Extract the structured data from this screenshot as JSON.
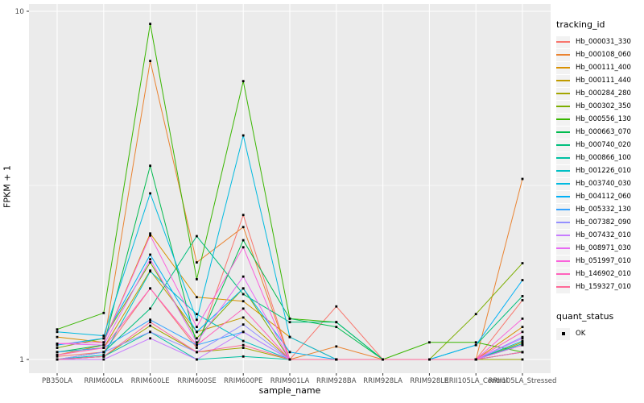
{
  "chart_data": {
    "type": "line",
    "title": "",
    "xlabel": "sample_name",
    "ylabel": "FPKM + 1",
    "y_scale": "log10",
    "ylim": [
      1,
      10
    ],
    "y_ticks": [
      10,
      1
    ],
    "y_minor_ticks": [
      3.162
    ],
    "grid": true,
    "legend_position": "right",
    "panel_bg": "#EBEBEB",
    "grid_color": "#FFFFFF",
    "axis_text_color": "#4D4D4D",
    "tick_color": "#333333",
    "point_shape": "square",
    "point_color": "#000000",
    "categories": [
      "PB350LA",
      "RRIM600LA",
      "RRIM600LE",
      "RRIM600SE",
      "RRIM600PE",
      "RRIM901LA",
      "RRIM928BA",
      "RRIM928LA",
      "RRIM928LE",
      "RRII105LA_Control",
      "RRII105LA_Stressed"
    ],
    "series": [
      {
        "name": "Hb_000031_330",
        "color": "#F8766D",
        "values": [
          1.02,
          1.05,
          1.6,
          1.08,
          2.6,
          1.0,
          1.42,
          1.0,
          1.0,
          1.0,
          1.48
        ]
      },
      {
        "name": "Hb_000108_060",
        "color": "#EA8331",
        "values": [
          1.03,
          1.1,
          7.2,
          1.9,
          2.4,
          1.0,
          1.09,
          1.0,
          1.0,
          1.0,
          3.3
        ]
      },
      {
        "name": "Hb_000111_400",
        "color": "#D89000",
        "values": [
          1.16,
          1.12,
          2.3,
          1.51,
          1.47,
          1.16,
          1.0,
          1.0,
          1.0,
          1.0,
          1.24
        ]
      },
      {
        "name": "Hb_000111_440",
        "color": "#C09B00",
        "values": [
          1.05,
          1.08,
          1.8,
          1.2,
          1.32,
          1.0,
          1.0,
          1.0,
          1.0,
          1.0,
          1.12
        ]
      },
      {
        "name": "Hb_000284_280",
        "color": "#A3A500",
        "values": [
          1.0,
          1.02,
          1.25,
          1.05,
          1.08,
          1.0,
          1.0,
          1.0,
          1.0,
          1.0,
          1.0
        ]
      },
      {
        "name": "Hb_000302_350",
        "color": "#7CAE00",
        "values": [
          1.08,
          1.15,
          1.9,
          1.15,
          1.6,
          1.0,
          1.0,
          1.0,
          1.0,
          1.35,
          1.89
        ]
      },
      {
        "name": "Hb_000556_130",
        "color": "#39B600",
        "values": [
          1.22,
          1.36,
          9.2,
          1.7,
          6.3,
          1.31,
          1.28,
          1.0,
          1.12,
          1.12,
          1.05
        ]
      },
      {
        "name": "Hb_000663_070",
        "color": "#00BB4E",
        "values": [
          1.05,
          1.1,
          3.6,
          1.1,
          2.2,
          1.31,
          1.24,
          1.0,
          1.0,
          1.0,
          1.1
        ]
      },
      {
        "name": "Hb_000740_020",
        "color": "#00BF7D",
        "values": [
          1.0,
          1.05,
          1.4,
          2.26,
          1.54,
          1.28,
          1.28,
          1.0,
          1.0,
          1.1,
          1.52
        ]
      },
      {
        "name": "Hb_000866_100",
        "color": "#00C1A3",
        "values": [
          1.0,
          1.02,
          1.2,
          1.0,
          1.02,
          1.0,
          1.0,
          1.0,
          1.0,
          1.0,
          1.11
        ]
      },
      {
        "name": "Hb_001226_010",
        "color": "#00BFC4",
        "values": [
          1.0,
          1.03,
          1.79,
          1.35,
          1.13,
          1.0,
          1.0,
          1.0,
          1.0,
          1.0,
          1.13
        ]
      },
      {
        "name": "Hb_003740_030",
        "color": "#00BAE0",
        "values": [
          1.2,
          1.17,
          3.0,
          1.3,
          4.4,
          1.16,
          1.0,
          1.0,
          1.0,
          1.0,
          1.05
        ]
      },
      {
        "name": "Hb_004112_060",
        "color": "#00B0F6",
        "values": [
          1.1,
          1.15,
          2.0,
          1.2,
          1.6,
          1.05,
          1.0,
          1.0,
          1.0,
          1.1,
          1.69
        ]
      },
      {
        "name": "Hb_005332_130",
        "color": "#35A2FF",
        "values": [
          1.05,
          1.08,
          1.3,
          1.1,
          1.2,
          1.0,
          1.0,
          1.0,
          1.0,
          1.0,
          1.05
        ]
      },
      {
        "name": "Hb_007382_090",
        "color": "#9590FF",
        "values": [
          1.0,
          1.05,
          1.2,
          1.05,
          1.26,
          1.0,
          1.0,
          1.0,
          1.0,
          1.0,
          1.16
        ]
      },
      {
        "name": "Hb_007432_010",
        "color": "#C77CFF",
        "values": [
          1.0,
          1.0,
          1.15,
          1.0,
          1.2,
          1.0,
          1.0,
          1.0,
          1.0,
          1.0,
          1.15
        ]
      },
      {
        "name": "Hb_008971_030",
        "color": "#E76BF3",
        "values": [
          1.11,
          1.1,
          1.94,
          1.12,
          1.73,
          1.0,
          1.0,
          1.0,
          1.0,
          1.0,
          1.1
        ]
      },
      {
        "name": "Hb_051997_010",
        "color": "#FA62DB",
        "values": [
          1.11,
          1.12,
          2.27,
          1.24,
          2.1,
          1.0,
          1.0,
          1.0,
          1.0,
          1.0,
          1.31
        ]
      },
      {
        "name": "Hb_146902_010",
        "color": "#FF62BC",
        "values": [
          1.03,
          1.08,
          1.6,
          1.1,
          1.4,
          1.0,
          1.0,
          1.0,
          1.0,
          1.0,
          1.2
        ]
      },
      {
        "name": "Hb_159327_010",
        "color": "#FF6A98",
        "values": [
          1.0,
          1.02,
          1.28,
          1.05,
          1.1,
          1.0,
          1.0,
          1.0,
          1.0,
          1.0,
          1.05
        ]
      }
    ]
  },
  "legend": {
    "tracking_title": "tracking_id",
    "quant_title": "quant_status",
    "quant_label": "OK"
  }
}
